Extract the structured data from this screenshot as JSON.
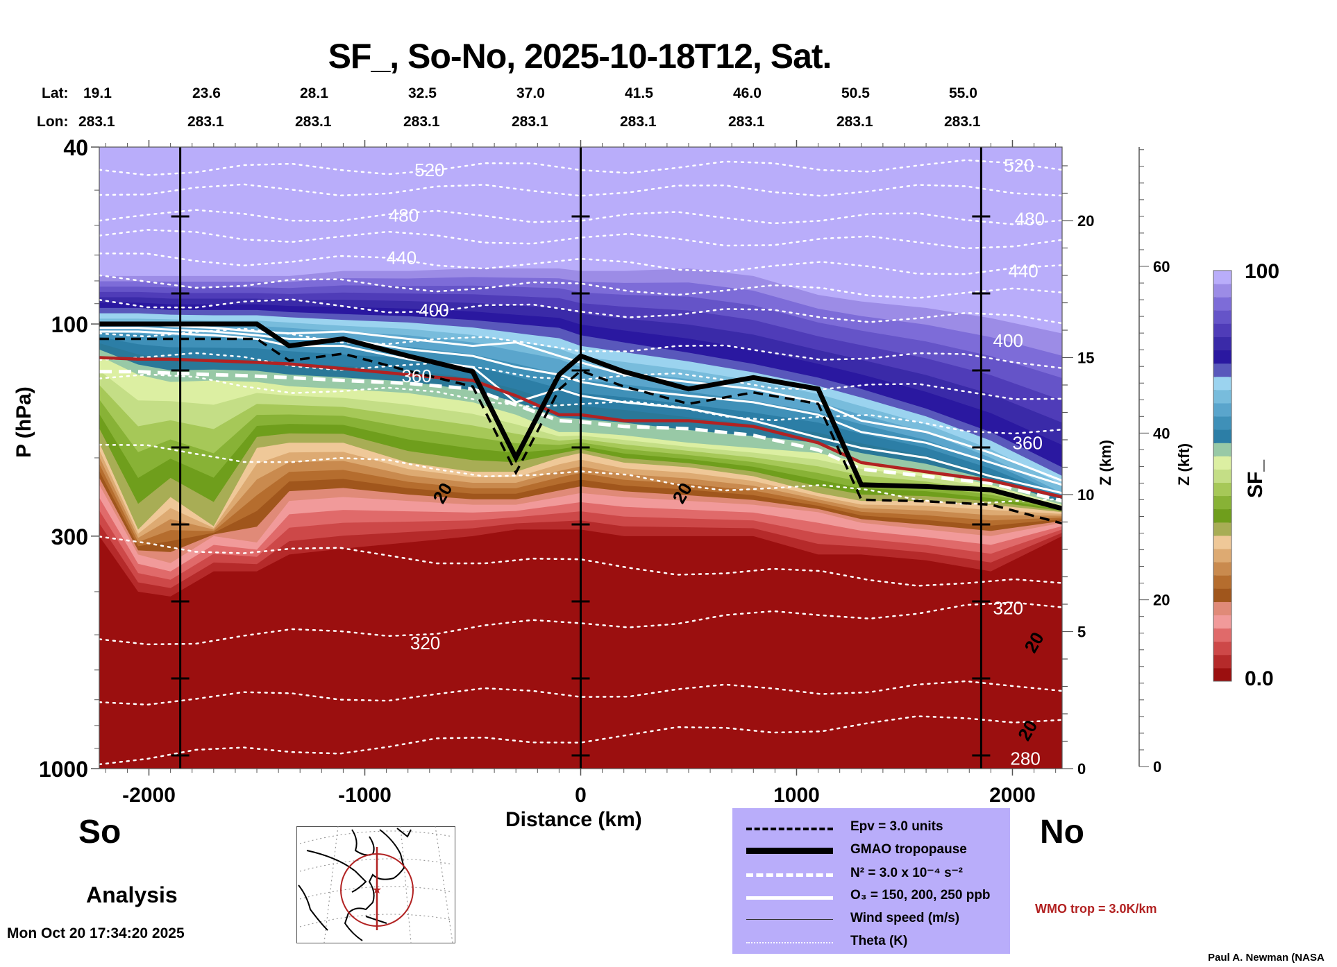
{
  "title": "SF_, So-No, 2025-10-18T12, Sat.",
  "lat_label": "Lat:",
  "lon_label": "Lon:",
  "latitudes": [
    "19.1",
    "23.6",
    "28.1",
    "32.5",
    "37.0",
    "41.5",
    "46.0",
    "50.5",
    "55.0"
  ],
  "longitudes": [
    "283.1",
    "283.1",
    "283.1",
    "283.1",
    "283.1",
    "283.1",
    "283.1",
    "283.1",
    "283.1"
  ],
  "so_label": "So",
  "no_label": "No",
  "analysis_label": "Analysis",
  "timestamp": "Mon Oct 20 17:34:20 2025",
  "credit": "Paul A. Newman (NASA",
  "wmo_note": "WMO trop = 3.0K/km",
  "wmo_color": "#b22222",
  "legend": [
    {
      "style": "black-dashed",
      "text": "Epv = 3.0 units"
    },
    {
      "style": "black-thick",
      "text": "GMAO tropopause"
    },
    {
      "style": "white-dashed",
      "text": "N² = 3.0 x 10⁻⁴ s⁻²"
    },
    {
      "style": "white-solid",
      "text": "O₃ = 150, 200, 250 ppb"
    },
    {
      "style": "thin-black",
      "text": "Wind speed (m/s)"
    },
    {
      "style": "white-dotted",
      "text": "Theta (K)"
    }
  ],
  "chart_data": {
    "type": "heatmap",
    "title": "SF_, So-No, 2025-10-18T12, Sat.",
    "xlabel": "Distance (km)",
    "ylabel": "P (hPa)",
    "y2label": "Z (km)",
    "y3label": "Z (kft)",
    "colorbar_label": "SF_",
    "xlim": [
      -2230,
      2230
    ],
    "ylim": [
      1000,
      40
    ],
    "yscale": "log",
    "x_ticks": [
      -2000,
      -1000,
      0,
      1000,
      2000
    ],
    "x_tick_labels": [
      "-2000",
      "-1000",
      "0",
      "1000",
      "2000"
    ],
    "y_ticks": [
      40,
      100,
      300,
      1000
    ],
    "y_tick_labels": [
      "40",
      "100",
      "300",
      "1000"
    ],
    "z_km_ticks": [
      0,
      5,
      10,
      15,
      20
    ],
    "z_km_labels": [
      "0",
      "5",
      "10",
      "15",
      "20"
    ],
    "z_kft_ticks": [
      0,
      20,
      40,
      60
    ],
    "z_kft_labels": [
      "0",
      "20",
      "40",
      "60"
    ],
    "colorbar": {
      "min": 0.0,
      "max": 100,
      "min_label": "0.0",
      "max_label": "100",
      "colors": [
        "#9b0f0f",
        "#b52a2a",
        "#cd4848",
        "#e06a6a",
        "#f19a9a",
        "#e08a78",
        "#a0561c",
        "#b56d2e",
        "#c98a4e",
        "#ddaa72",
        "#efc898",
        "#a8ad55",
        "#6f9e1c",
        "#88b236",
        "#a6c858",
        "#c4de86",
        "#dcefa2",
        "#98c9a6",
        "#2c7ea6",
        "#3f90b8",
        "#5aa5cc",
        "#78bcdc",
        "#9bd3ef",
        "#5958bb",
        "#2a18a0",
        "#3a2aa8",
        "#4f3cb8",
        "#6554c8",
        "#7d6cd8",
        "#9c8ce6",
        "#b9adfa"
      ]
    },
    "vertical_markers_km": [
      -1855,
      0,
      1855
    ],
    "theta_labels": [
      {
        "value": "520",
        "x": -700,
        "p": 45
      },
      {
        "value": "480",
        "x": -820,
        "p": 57
      },
      {
        "value": "440",
        "x": -830,
        "p": 71
      },
      {
        "value": "400",
        "x": -680,
        "p": 93
      },
      {
        "value": "360",
        "x": -760,
        "p": 131
      },
      {
        "value": "320",
        "x": -720,
        "p": 522
      },
      {
        "value": "520",
        "x": 2030,
        "p": 44
      },
      {
        "value": "480",
        "x": 2080,
        "p": 58
      },
      {
        "value": "440",
        "x": 2050,
        "p": 76
      },
      {
        "value": "400",
        "x": 1980,
        "p": 109
      },
      {
        "value": "360",
        "x": 2070,
        "p": 185
      },
      {
        "value": "320",
        "x": 1980,
        "p": 435
      },
      {
        "value": "280",
        "x": 2060,
        "p": 950
      }
    ],
    "wind_labels": [
      {
        "value": "20",
        "x": -640,
        "p": 240
      },
      {
        "value": "20",
        "x": 470,
        "p": 240
      },
      {
        "value": "20",
        "x": 2100,
        "p": 520
      },
      {
        "value": "20",
        "x": 2070,
        "p": 820
      }
    ],
    "x": [
      -2230,
      -2050,
      -1900,
      -1700,
      -1500,
      -1350,
      -1100,
      -800,
      -500,
      -300,
      -100,
      0,
      200,
      500,
      800,
      1100,
      1300,
      1600,
      1900,
      2230
    ],
    "band_boundaries_hPa": {
      "top_purple": [
        78,
        78,
        78,
        78,
        78,
        78,
        76,
        76,
        75,
        75,
        75,
        76,
        76,
        75,
        78,
        86,
        89,
        92,
        97,
        105
      ],
      "dark_purple_bottom": [
        92,
        92,
        93,
        93,
        93,
        94,
        95,
        96,
        98,
        100,
        102,
        106,
        110,
        116,
        123,
        132,
        140,
        155,
        175,
        210
      ],
      "blue_top": [
        100,
        100,
        100,
        101,
        101,
        102,
        104,
        106,
        110,
        115,
        120,
        125,
        128,
        133,
        140,
        150,
        160,
        175,
        200,
        240
      ],
      "green_top": [
        118,
        130,
        135,
        134,
        135,
        138,
        140,
        143,
        150,
        160,
        175,
        175,
        178,
        185,
        190,
        195,
        205,
        215,
        230,
        255
      ],
      "tan_top": [
        185,
        290,
        245,
        285,
        190,
        185,
        185,
        205,
        215,
        215,
        200,
        195,
        205,
        210,
        220,
        240,
        250,
        250,
        255,
        265
      ],
      "red_top": [
        230,
        330,
        345,
        300,
        310,
        250,
        245,
        250,
        255,
        255,
        245,
        240,
        245,
        250,
        255,
        265,
        280,
        290,
        300,
        280
      ],
      "deep_red_top": [
        300,
        400,
        410,
        360,
        360,
        330,
        320,
        310,
        300,
        290,
        290,
        290,
        300,
        300,
        300,
        330,
        330,
        340,
        360,
        300
      ]
    },
    "lines": {
      "wmo_tropopause_hPa": [
        119,
        120,
        120,
        121,
        122,
        123,
        126,
        130,
        134,
        145,
        160,
        160,
        165,
        165,
        170,
        185,
        205,
        215,
        225,
        245
      ],
      "n2_dashed_hPa": [
        128,
        128,
        129,
        130,
        131,
        132,
        134,
        136,
        140,
        152,
        165,
        166,
        170,
        172,
        178,
        192,
        212,
        220,
        228,
        250
      ],
      "gmao_tropopause_hPa": [
        100,
        100,
        100,
        100,
        100,
        112,
        108,
        118,
        128,
        200,
        130,
        118,
        128,
        140,
        132,
        140,
        230,
        232,
        236,
        260
      ],
      "o3_150_hPa": [
        104,
        104,
        105,
        106,
        108,
        112,
        112,
        120,
        125,
        150,
        140,
        145,
        150,
        155,
        165,
        180,
        190,
        200,
        220,
        240
      ],
      "o3_200_hPa": [
        102,
        102,
        103,
        104,
        106,
        108,
        108,
        114,
        118,
        125,
        130,
        135,
        140,
        145,
        150,
        160,
        175,
        185,
        205,
        230
      ],
      "o3_250_hPa": [
        100,
        100,
        101,
        102,
        104,
        105,
        104,
        108,
        112,
        110,
        118,
        122,
        130,
        135,
        140,
        150,
        165,
        175,
        195,
        225
      ]
    }
  }
}
